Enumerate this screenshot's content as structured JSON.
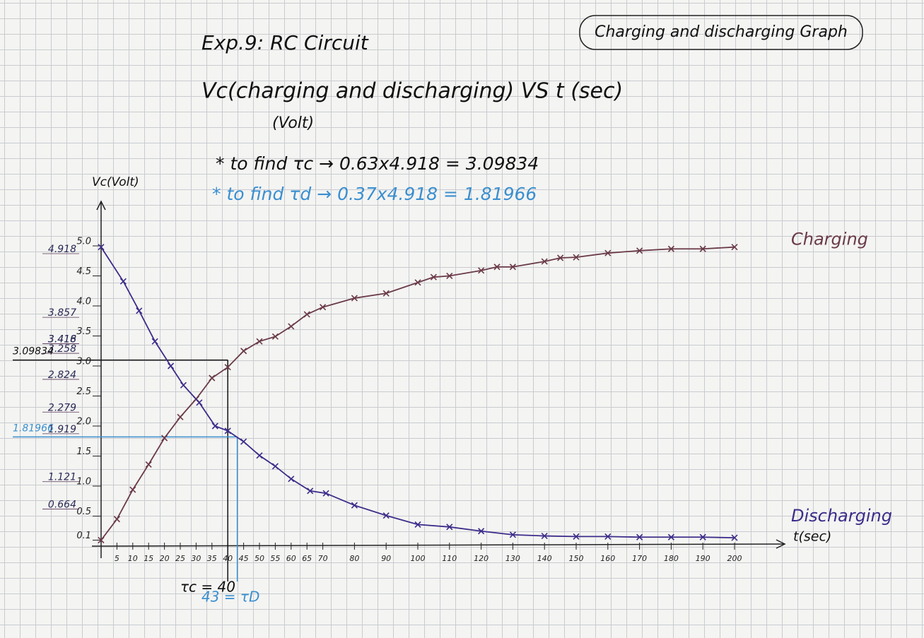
{
  "chart_data": {
    "type": "line",
    "title": "Exp.9: RC Circuit",
    "subtitle": "Vc(charging and discharging) VS t (sec)",
    "subtitle_unit": "(Volt)",
    "badge": "Charging and discharging Graph",
    "note_c": "* to find τc → 0.63x4.918 = 3.09834",
    "note_d": "* to find τd → 0.37x4.918 = 1.81966",
    "y_label": "Vc(Volt)",
    "x_label": "t(sec)",
    "xlim": [
      0,
      210
    ],
    "ylim": [
      0,
      5.5
    ],
    "xticks": [
      5,
      10,
      15,
      20,
      25,
      30,
      35,
      40,
      45,
      50,
      55,
      60,
      65,
      70,
      80,
      90,
      100,
      110,
      120,
      130,
      140,
      150,
      160,
      170,
      180,
      190,
      200
    ],
    "yticks": [
      0.1,
      0.5,
      {
        "value": 1,
        "label": "1.0"
      },
      1.5,
      {
        "value": 2,
        "label": "2.0"
      },
      2.5,
      {
        "value": 3,
        "label": "3.0"
      },
      3.5,
      {
        "value": 4,
        "label": "4.0"
      },
      4.5,
      {
        "value": 5,
        "label": "5.0"
      }
    ],
    "y_notes": [
      {
        "value": 4.918,
        "label": "4.918"
      },
      {
        "value": 3.857,
        "label": "3.857"
      },
      {
        "value": 3.418,
        "label": "3.418"
      },
      {
        "value": 3.416,
        "label": "3.416"
      },
      {
        "value": 3.258,
        "label": "3.258"
      },
      {
        "value": 2.824,
        "label": "2.824"
      },
      {
        "value": 2.279,
        "label": "2.279"
      },
      {
        "value": 1.919,
        "label": "1.919"
      },
      {
        "value": 1.121,
        "label": "1.121"
      },
      {
        "value": 0.664,
        "label": "0.664"
      }
    ],
    "guides": [
      {
        "t": 40,
        "v": 3.09834,
        "label": "3.09834",
        "t_label": "τc = 40",
        "color": "#111111"
      },
      {
        "t": 43,
        "v": 1.81966,
        "label": "1.81966",
        "t_label": "43 = τD",
        "color": "#3a8fd0"
      }
    ],
    "series": [
      {
        "name": "Charging",
        "color": "#6a3a48",
        "x": [
          0,
          5,
          10,
          15,
          20,
          25,
          30,
          35,
          40,
          45,
          50,
          55,
          60,
          65,
          70,
          80,
          90,
          100,
          105,
          110,
          120,
          125,
          130,
          140,
          145,
          150,
          160,
          170,
          180,
          190,
          200
        ],
        "values": [
          0.1,
          0.45,
          0.94,
          1.36,
          1.8,
          2.15,
          2.45,
          2.8,
          2.98,
          3.25,
          3.41,
          3.49,
          3.66,
          3.86,
          3.98,
          4.13,
          4.21,
          4.39,
          4.48,
          4.5,
          4.59,
          4.65,
          4.65,
          4.74,
          4.8,
          4.81,
          4.88,
          4.92,
          4.95,
          4.95,
          4.98
        ]
      },
      {
        "name": "Discharging",
        "color": "#3d2c8a",
        "x": [
          0,
          7,
          12,
          17,
          22,
          26,
          31,
          36,
          40,
          45,
          50,
          55,
          60,
          66,
          71,
          80,
          90,
          100,
          110,
          120,
          130,
          140,
          150,
          160,
          170,
          180,
          190,
          200
        ],
        "values": [
          4.98,
          4.41,
          3.92,
          3.41,
          3.0,
          2.68,
          2.39,
          2.0,
          1.92,
          1.74,
          1.51,
          1.33,
          1.12,
          0.92,
          0.88,
          0.68,
          0.51,
          0.36,
          0.32,
          0.25,
          0.19,
          0.17,
          0.16,
          0.16,
          0.15,
          0.15,
          0.15,
          0.14
        ]
      }
    ]
  }
}
